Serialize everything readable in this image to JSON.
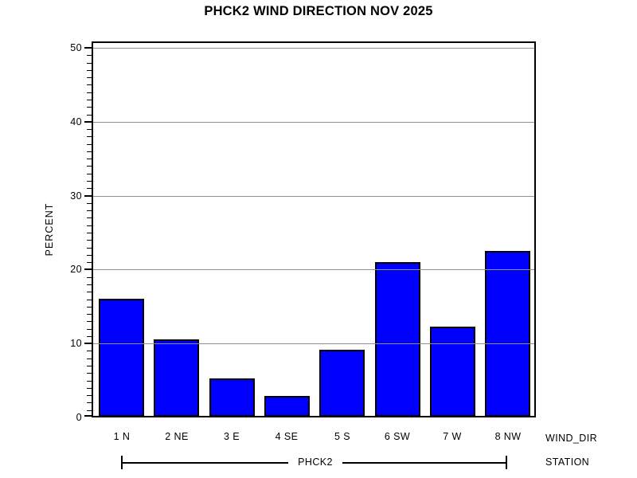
{
  "title": "PHCK2 WIND DIRECTION NOV 2025",
  "chart_data": {
    "type": "bar",
    "title": "PHCK2 WIND DIRECTION NOV 2025",
    "categories": [
      "1 N",
      "2 NE",
      "3 E",
      "4 SE",
      "5 S",
      "6 SW",
      "7 W",
      "8 NW"
    ],
    "values": [
      16.0,
      10.4,
      5.2,
      2.8,
      9.1,
      20.9,
      12.2,
      22.4
    ],
    "xlabel": "WIND_DIR",
    "ylabel": "PERCENT",
    "ylim": [
      0,
      50
    ],
    "yticks": [
      0,
      10,
      20,
      30,
      40,
      50
    ],
    "ytick_labels": [
      "0",
      "10",
      "20",
      "30",
      "40",
      "50"
    ],
    "minor_tick_step": 1,
    "grid": "horizontal major gridlines, drawn over bars",
    "legend": "none",
    "bar_color": "#0000ff",
    "bar_border_color": "#000000",
    "grid_color": "#909090",
    "group_label": "PHCK2",
    "group_axis_label": "STATION"
  }
}
